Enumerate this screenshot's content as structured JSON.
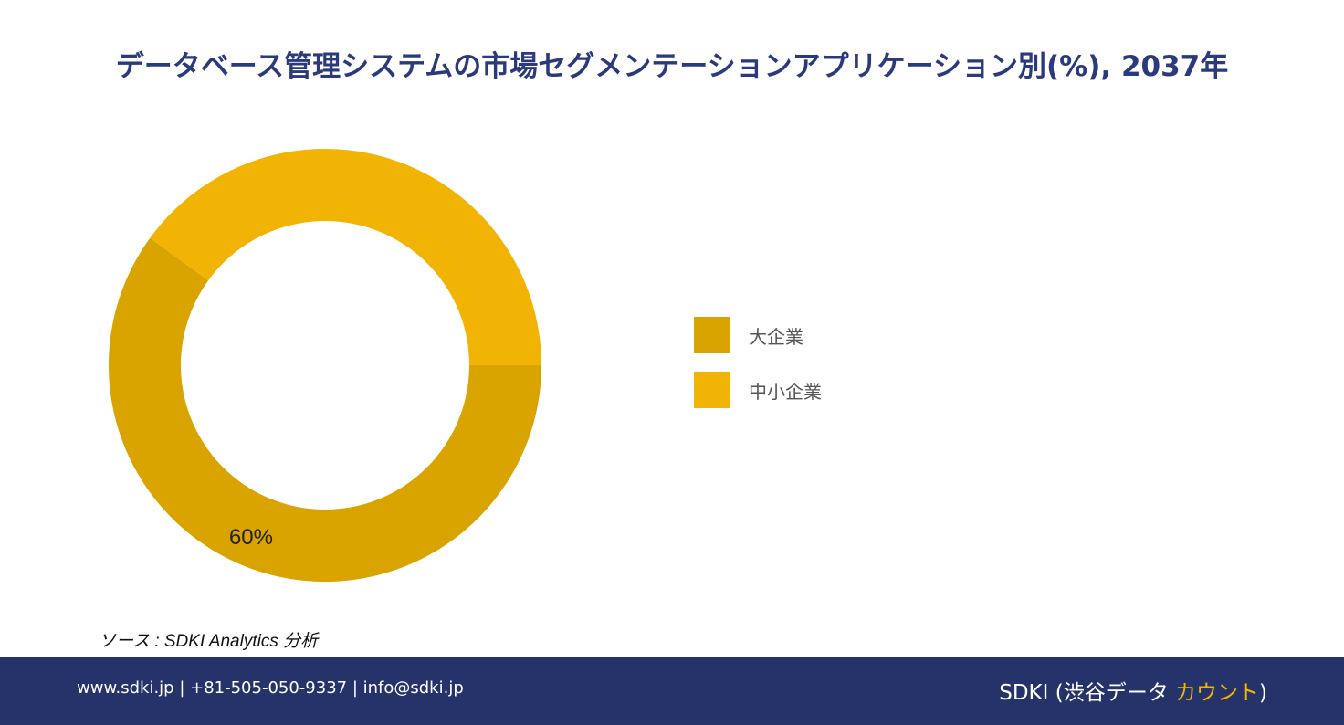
{
  "title": "データベース管理システムの市場セグメンテーションアプリケーション別(%), 2037年",
  "chart_data": {
    "type": "pie",
    "style": "donut",
    "categories": [
      "大企業",
      "中小企業"
    ],
    "values": [
      60,
      40
    ],
    "data_labels": [
      "60%",
      ""
    ],
    "colors": [
      "#d9a300",
      "#f2b404"
    ],
    "legend_position": "right"
  },
  "source": "ソース : SDKI Analytics 分析",
  "footer": {
    "contact": "www.sdki.jp | +81-505-050-9337 | info@sdki.jp",
    "brand_main": "SDKI (渋谷データ ",
    "brand_accent": "カウント",
    "brand_end": ")"
  }
}
